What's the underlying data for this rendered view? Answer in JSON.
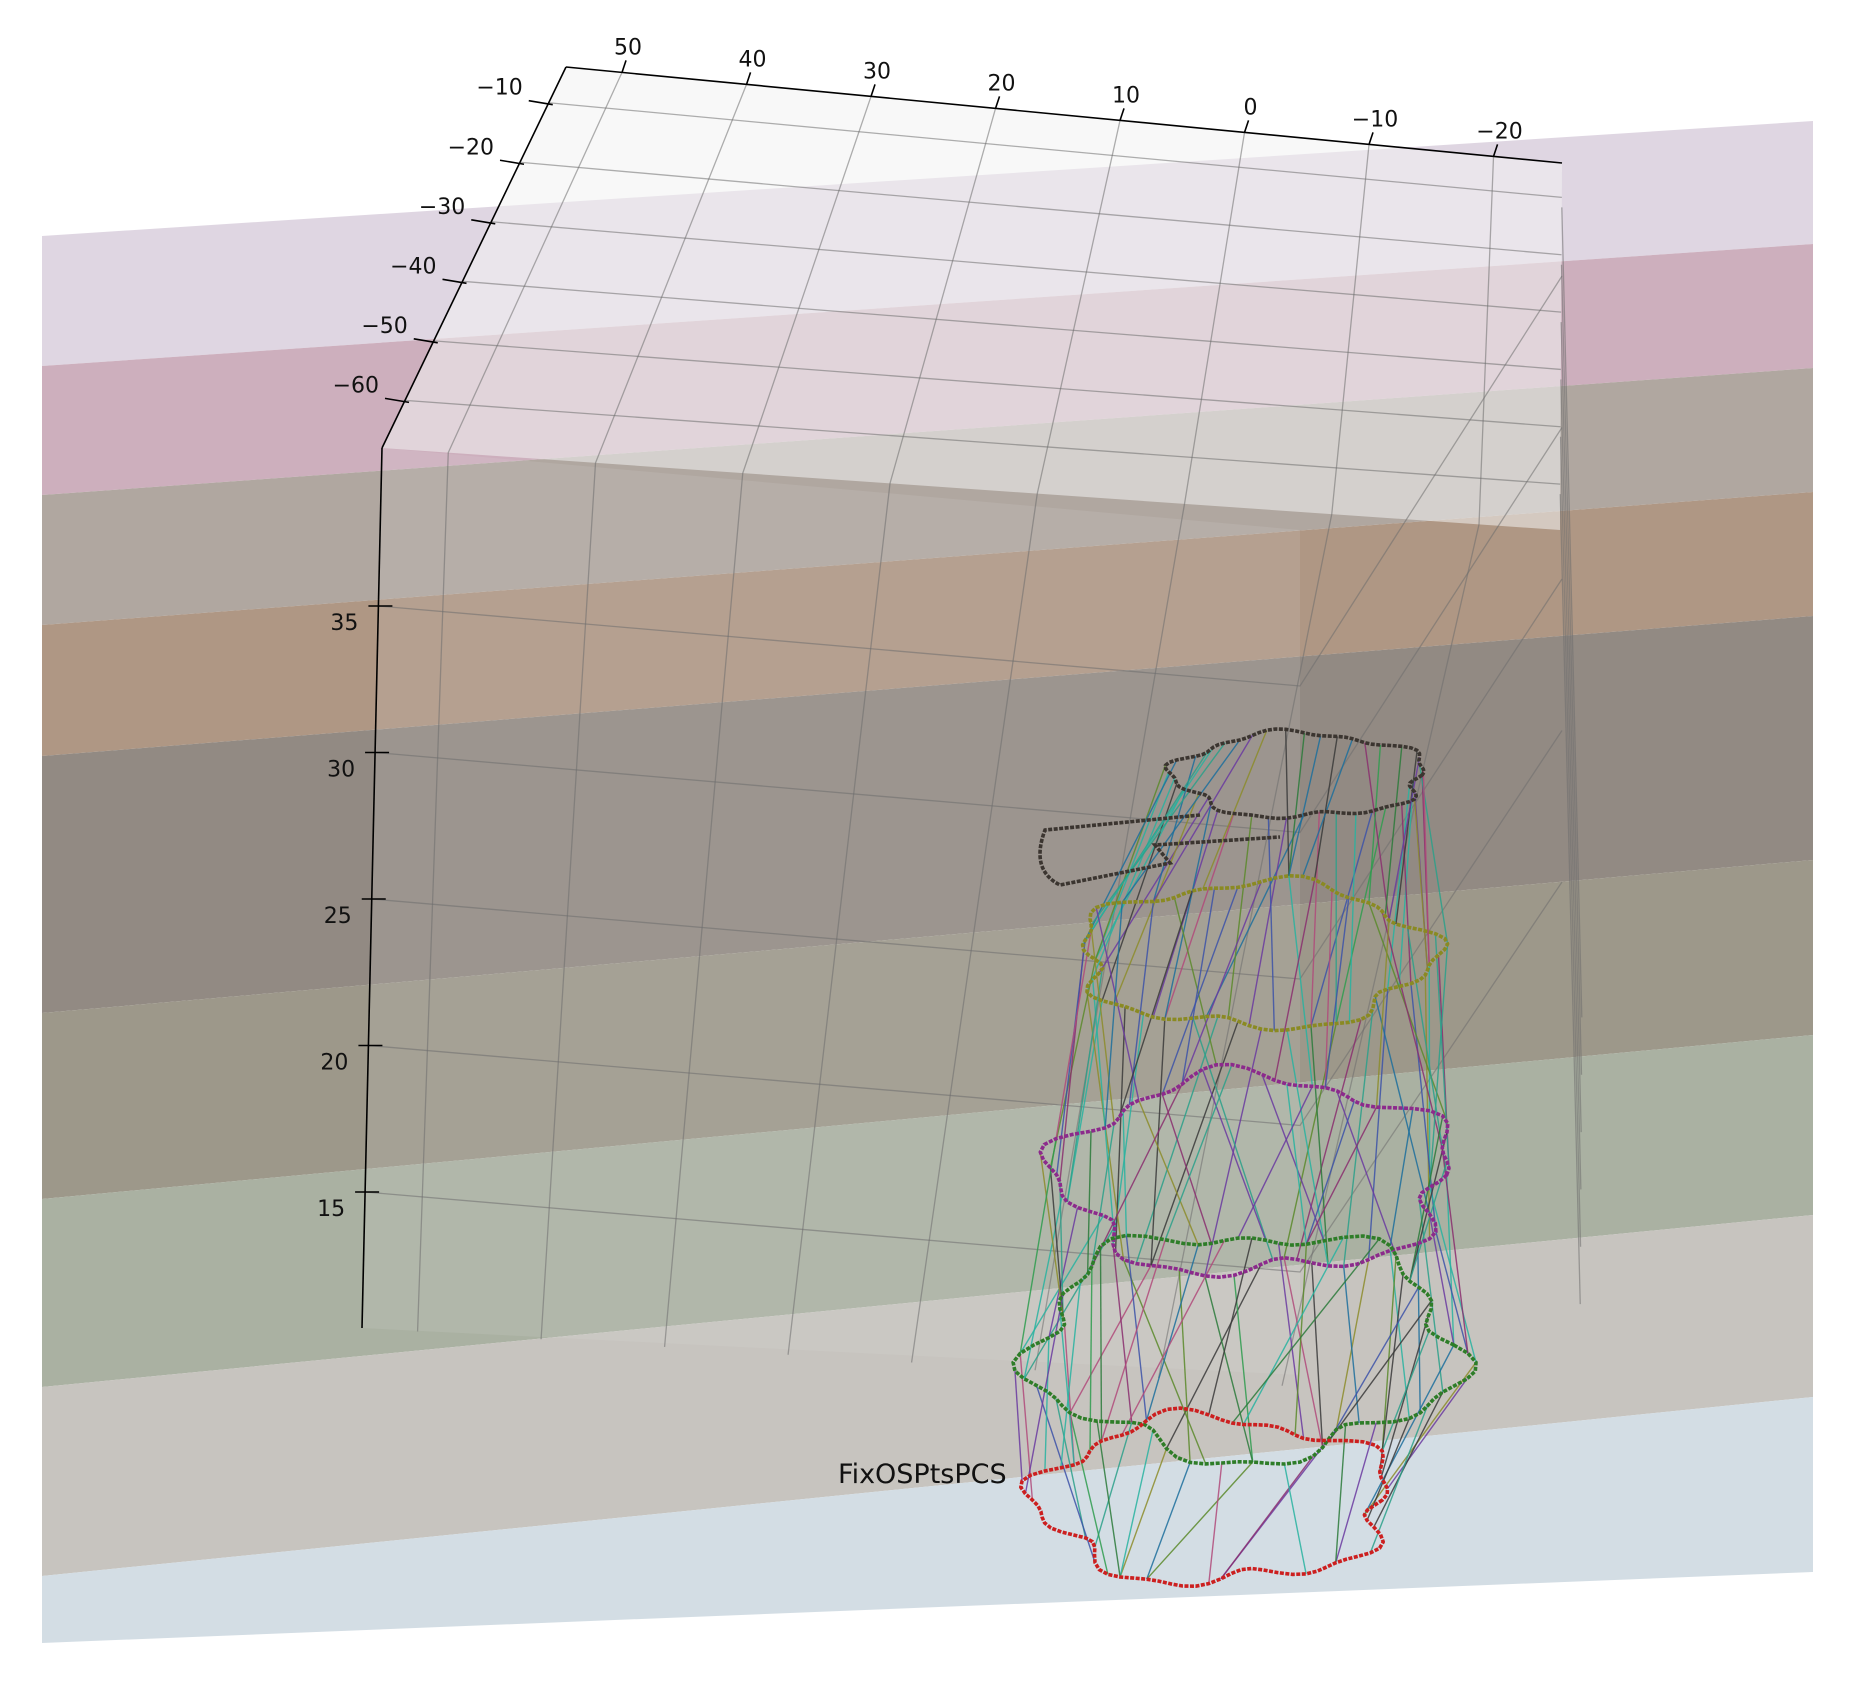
{
  "chart_data": {
    "type": "3d-line",
    "title": "",
    "annotation": "FixOSPtsPCS",
    "x_ticks": [
      50,
      40,
      30,
      20,
      10,
      0,
      -10,
      -20
    ],
    "x_tick_labels": [
      "50",
      "40",
      "30",
      "20",
      "10",
      "0",
      "−10",
      "−20"
    ],
    "y_ticks": [
      -10,
      -20,
      -30,
      -40,
      -50,
      -60
    ],
    "y_tick_labels": [
      "−10",
      "−20",
      "−30",
      "−40",
      "−50",
      "−60"
    ],
    "z_ticks": [
      35,
      30,
      25,
      20,
      15
    ],
    "z_tick_labels": [
      "35",
      "30",
      "25",
      "20",
      "15"
    ],
    "grid": true,
    "layers": [
      {
        "color": "#dcd2e0"
      },
      {
        "color": "#c9a8b7"
      },
      {
        "color": "#a99f98"
      },
      {
        "color": "#a88e7a"
      },
      {
        "color": "#898078"
      },
      {
        "color": "#958f80"
      },
      {
        "color": "#a3aa9a"
      },
      {
        "color": "#c2bfba"
      },
      {
        "color": "#cfdae2"
      }
    ],
    "contours": [
      {
        "level": "top",
        "color": "#3b3530"
      },
      {
        "level": "upper",
        "color": "#8a8a22"
      },
      {
        "level": "middle",
        "color": "#8c2a8c"
      },
      {
        "level": "lower",
        "color": "#2e7d28"
      },
      {
        "level": "bottom",
        "color": "#cc1f1f"
      }
    ]
  }
}
